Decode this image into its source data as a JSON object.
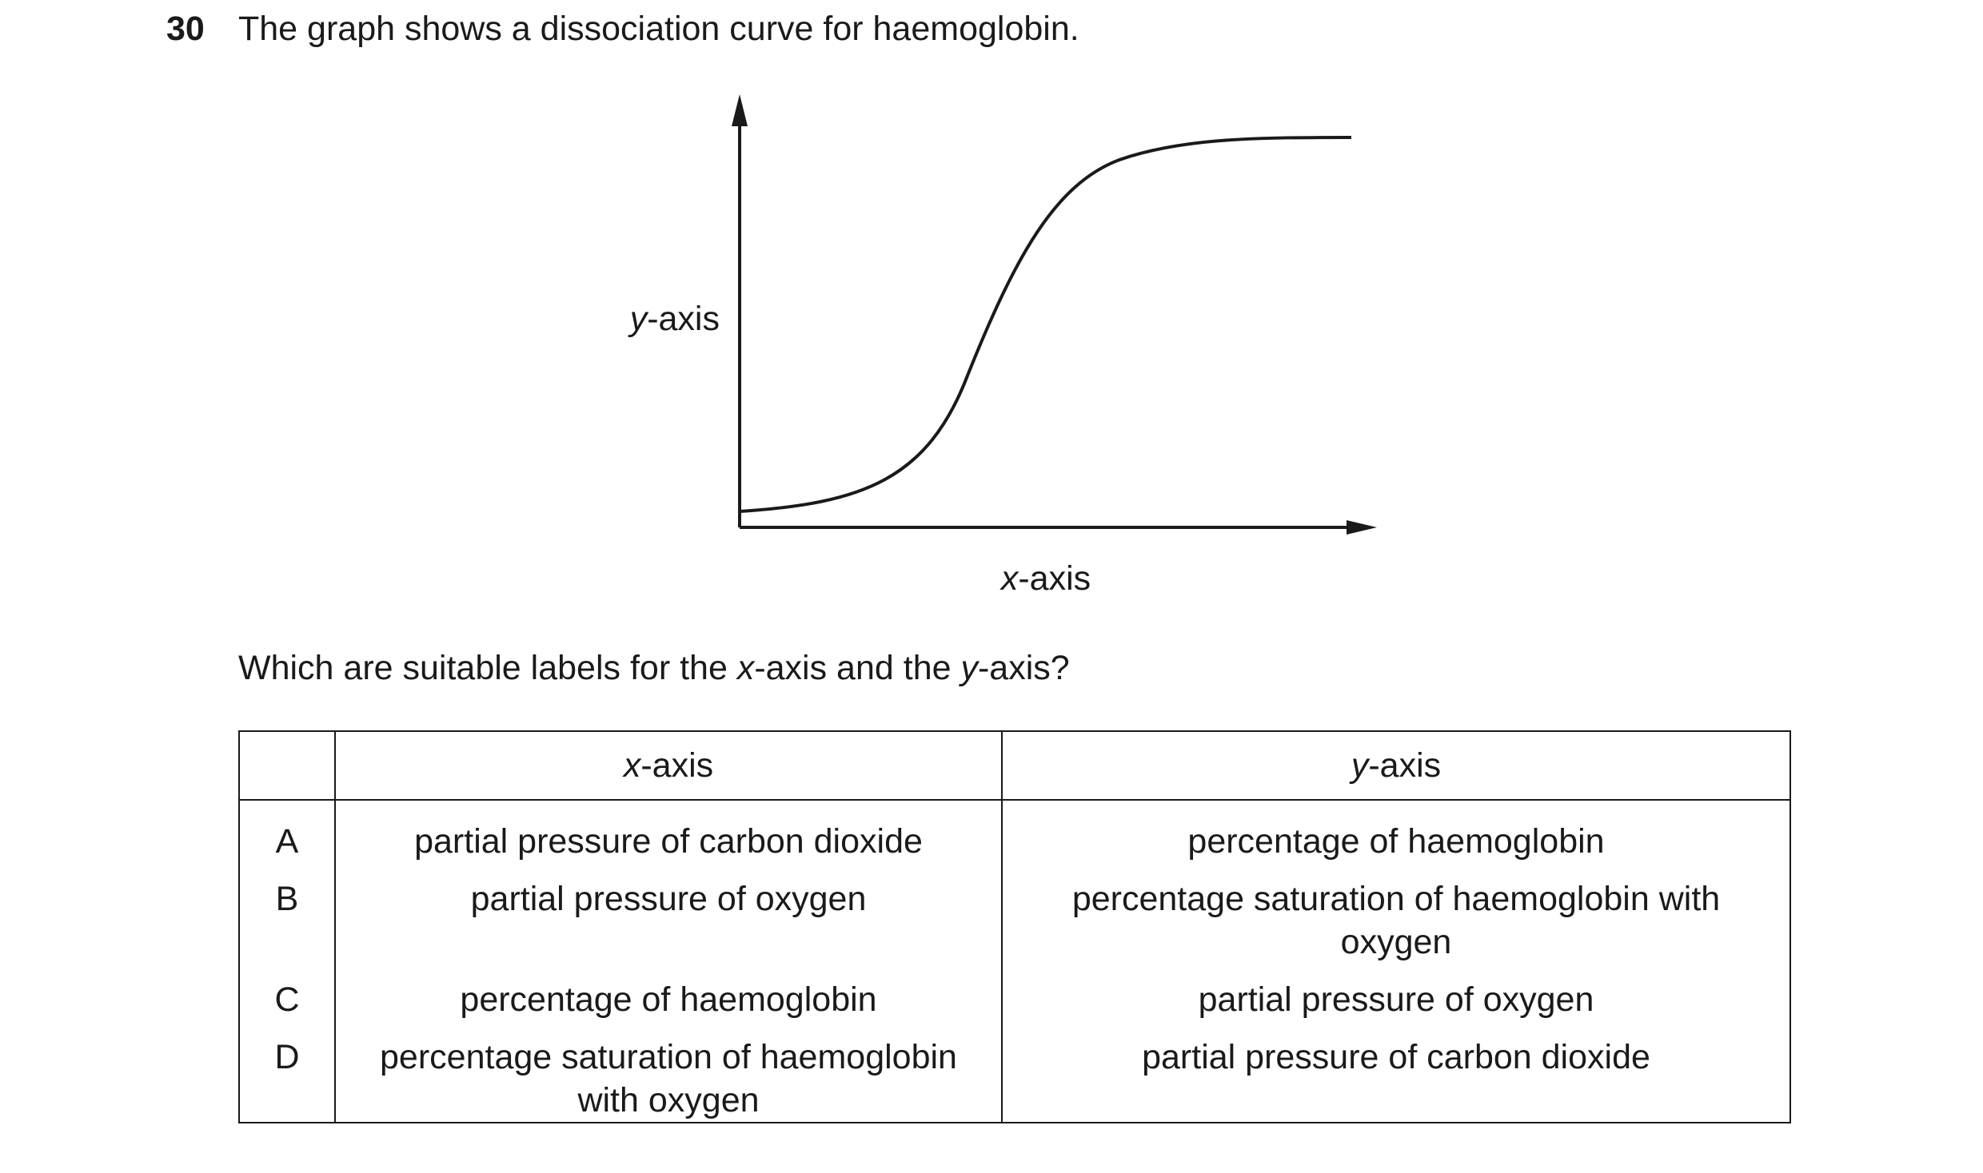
{
  "question": {
    "number": "30",
    "text": "The graph shows a dissociation curve for haemoglobin."
  },
  "graph": {
    "y_label_var": "y",
    "y_label_rest": "-axis",
    "x_label_var": "x",
    "x_label_rest": "-axis"
  },
  "prompt": {
    "part1": "Which are suitable labels for the ",
    "var_x": "x",
    "part2": "-axis and the ",
    "var_y": "y",
    "part3": "-axis?"
  },
  "table": {
    "header": {
      "x_var": "x",
      "x_rest": "-axis",
      "y_var": "y",
      "y_rest": "-axis"
    },
    "rows": [
      {
        "letter": "A",
        "x": "partial pressure of carbon dioxide",
        "y": "percentage of haemoglobin"
      },
      {
        "letter": "B",
        "x": "partial pressure of oxygen",
        "y": "percentage saturation of haemoglobin with oxygen"
      },
      {
        "letter": "C",
        "x": "percentage of haemoglobin",
        "y": "partial pressure of oxygen"
      },
      {
        "letter": "D",
        "x": "percentage saturation of haemoglobin with oxygen",
        "y": "partial pressure of carbon dioxide"
      }
    ]
  }
}
